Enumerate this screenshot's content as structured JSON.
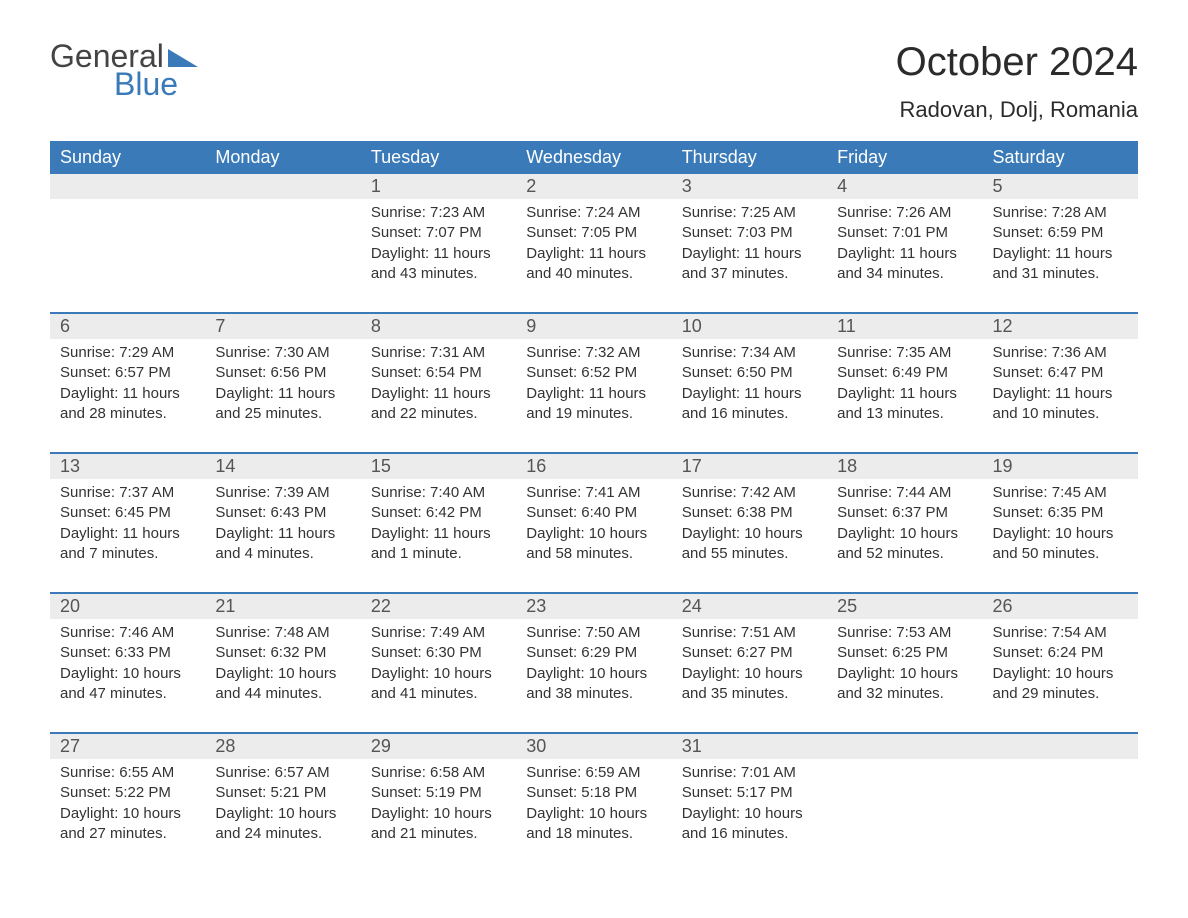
{
  "logo": {
    "general": "General",
    "blue": "Blue"
  },
  "title": "October 2024",
  "location": "Radovan, Dolj, Romania",
  "colors": {
    "header_bg": "#3a7ab8",
    "header_text": "#ffffff",
    "daynum_bg": "#ececec",
    "border": "#3a7ab8",
    "body_text": "#333333",
    "logo_gray": "#444444",
    "logo_blue": "#3a7ab8",
    "background": "#ffffff"
  },
  "typography": {
    "title_fontsize": 40,
    "location_fontsize": 22,
    "weekday_fontsize": 18,
    "daynum_fontsize": 18,
    "body_fontsize": 15
  },
  "weekdays": [
    "Sunday",
    "Monday",
    "Tuesday",
    "Wednesday",
    "Thursday",
    "Friday",
    "Saturday"
  ],
  "weeks": [
    [
      null,
      null,
      {
        "n": "1",
        "sr": "Sunrise: 7:23 AM",
        "ss": "Sunset: 7:07 PM",
        "d1": "Daylight: 11 hours",
        "d2": "and 43 minutes."
      },
      {
        "n": "2",
        "sr": "Sunrise: 7:24 AM",
        "ss": "Sunset: 7:05 PM",
        "d1": "Daylight: 11 hours",
        "d2": "and 40 minutes."
      },
      {
        "n": "3",
        "sr": "Sunrise: 7:25 AM",
        "ss": "Sunset: 7:03 PM",
        "d1": "Daylight: 11 hours",
        "d2": "and 37 minutes."
      },
      {
        "n": "4",
        "sr": "Sunrise: 7:26 AM",
        "ss": "Sunset: 7:01 PM",
        "d1": "Daylight: 11 hours",
        "d2": "and 34 minutes."
      },
      {
        "n": "5",
        "sr": "Sunrise: 7:28 AM",
        "ss": "Sunset: 6:59 PM",
        "d1": "Daylight: 11 hours",
        "d2": "and 31 minutes."
      }
    ],
    [
      {
        "n": "6",
        "sr": "Sunrise: 7:29 AM",
        "ss": "Sunset: 6:57 PM",
        "d1": "Daylight: 11 hours",
        "d2": "and 28 minutes."
      },
      {
        "n": "7",
        "sr": "Sunrise: 7:30 AM",
        "ss": "Sunset: 6:56 PM",
        "d1": "Daylight: 11 hours",
        "d2": "and 25 minutes."
      },
      {
        "n": "8",
        "sr": "Sunrise: 7:31 AM",
        "ss": "Sunset: 6:54 PM",
        "d1": "Daylight: 11 hours",
        "d2": "and 22 minutes."
      },
      {
        "n": "9",
        "sr": "Sunrise: 7:32 AM",
        "ss": "Sunset: 6:52 PM",
        "d1": "Daylight: 11 hours",
        "d2": "and 19 minutes."
      },
      {
        "n": "10",
        "sr": "Sunrise: 7:34 AM",
        "ss": "Sunset: 6:50 PM",
        "d1": "Daylight: 11 hours",
        "d2": "and 16 minutes."
      },
      {
        "n": "11",
        "sr": "Sunrise: 7:35 AM",
        "ss": "Sunset: 6:49 PM",
        "d1": "Daylight: 11 hours",
        "d2": "and 13 minutes."
      },
      {
        "n": "12",
        "sr": "Sunrise: 7:36 AM",
        "ss": "Sunset: 6:47 PM",
        "d1": "Daylight: 11 hours",
        "d2": "and 10 minutes."
      }
    ],
    [
      {
        "n": "13",
        "sr": "Sunrise: 7:37 AM",
        "ss": "Sunset: 6:45 PM",
        "d1": "Daylight: 11 hours",
        "d2": "and 7 minutes."
      },
      {
        "n": "14",
        "sr": "Sunrise: 7:39 AM",
        "ss": "Sunset: 6:43 PM",
        "d1": "Daylight: 11 hours",
        "d2": "and 4 minutes."
      },
      {
        "n": "15",
        "sr": "Sunrise: 7:40 AM",
        "ss": "Sunset: 6:42 PM",
        "d1": "Daylight: 11 hours",
        "d2": "and 1 minute."
      },
      {
        "n": "16",
        "sr": "Sunrise: 7:41 AM",
        "ss": "Sunset: 6:40 PM",
        "d1": "Daylight: 10 hours",
        "d2": "and 58 minutes."
      },
      {
        "n": "17",
        "sr": "Sunrise: 7:42 AM",
        "ss": "Sunset: 6:38 PM",
        "d1": "Daylight: 10 hours",
        "d2": "and 55 minutes."
      },
      {
        "n": "18",
        "sr": "Sunrise: 7:44 AM",
        "ss": "Sunset: 6:37 PM",
        "d1": "Daylight: 10 hours",
        "d2": "and 52 minutes."
      },
      {
        "n": "19",
        "sr": "Sunrise: 7:45 AM",
        "ss": "Sunset: 6:35 PM",
        "d1": "Daylight: 10 hours",
        "d2": "and 50 minutes."
      }
    ],
    [
      {
        "n": "20",
        "sr": "Sunrise: 7:46 AM",
        "ss": "Sunset: 6:33 PM",
        "d1": "Daylight: 10 hours",
        "d2": "and 47 minutes."
      },
      {
        "n": "21",
        "sr": "Sunrise: 7:48 AM",
        "ss": "Sunset: 6:32 PM",
        "d1": "Daylight: 10 hours",
        "d2": "and 44 minutes."
      },
      {
        "n": "22",
        "sr": "Sunrise: 7:49 AM",
        "ss": "Sunset: 6:30 PM",
        "d1": "Daylight: 10 hours",
        "d2": "and 41 minutes."
      },
      {
        "n": "23",
        "sr": "Sunrise: 7:50 AM",
        "ss": "Sunset: 6:29 PM",
        "d1": "Daylight: 10 hours",
        "d2": "and 38 minutes."
      },
      {
        "n": "24",
        "sr": "Sunrise: 7:51 AM",
        "ss": "Sunset: 6:27 PM",
        "d1": "Daylight: 10 hours",
        "d2": "and 35 minutes."
      },
      {
        "n": "25",
        "sr": "Sunrise: 7:53 AM",
        "ss": "Sunset: 6:25 PM",
        "d1": "Daylight: 10 hours",
        "d2": "and 32 minutes."
      },
      {
        "n": "26",
        "sr": "Sunrise: 7:54 AM",
        "ss": "Sunset: 6:24 PM",
        "d1": "Daylight: 10 hours",
        "d2": "and 29 minutes."
      }
    ],
    [
      {
        "n": "27",
        "sr": "Sunrise: 6:55 AM",
        "ss": "Sunset: 5:22 PM",
        "d1": "Daylight: 10 hours",
        "d2": "and 27 minutes."
      },
      {
        "n": "28",
        "sr": "Sunrise: 6:57 AM",
        "ss": "Sunset: 5:21 PM",
        "d1": "Daylight: 10 hours",
        "d2": "and 24 minutes."
      },
      {
        "n": "29",
        "sr": "Sunrise: 6:58 AM",
        "ss": "Sunset: 5:19 PM",
        "d1": "Daylight: 10 hours",
        "d2": "and 21 minutes."
      },
      {
        "n": "30",
        "sr": "Sunrise: 6:59 AM",
        "ss": "Sunset: 5:18 PM",
        "d1": "Daylight: 10 hours",
        "d2": "and 18 minutes."
      },
      {
        "n": "31",
        "sr": "Sunrise: 7:01 AM",
        "ss": "Sunset: 5:17 PM",
        "d1": "Daylight: 10 hours",
        "d2": "and 16 minutes."
      },
      null,
      null
    ]
  ]
}
